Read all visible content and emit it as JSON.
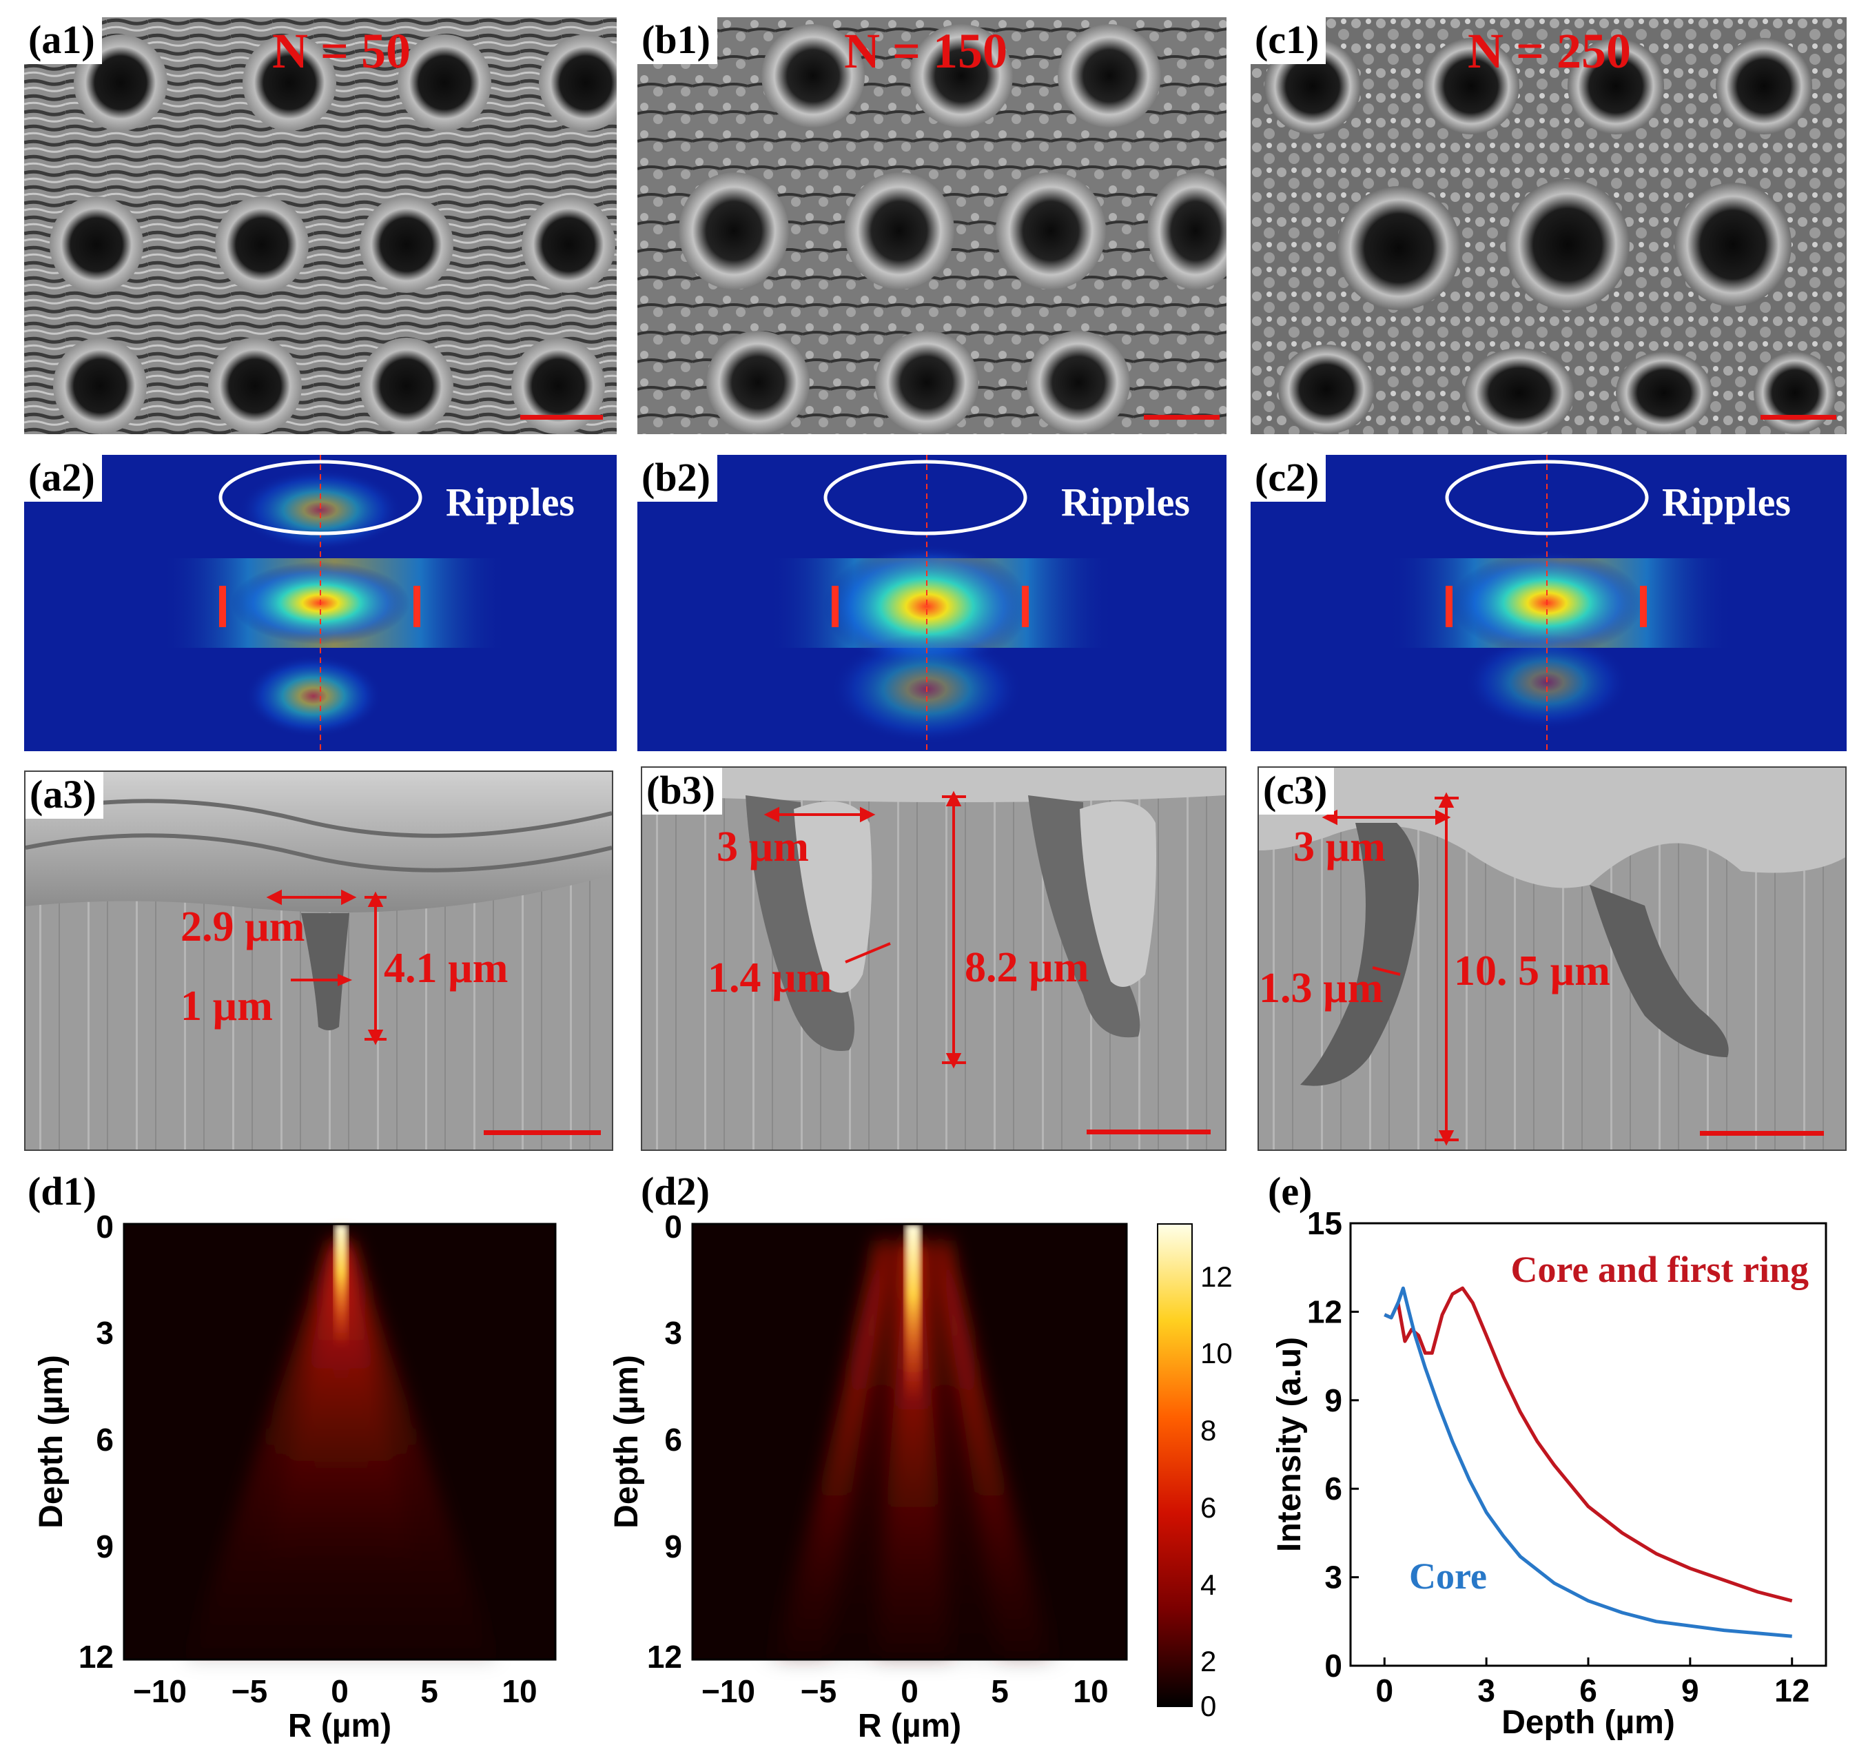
{
  "row1": {
    "a1": {
      "label": "(a1)",
      "n_label": "N = 50"
    },
    "b1": {
      "label": "(b1)",
      "n_label": "N = 150"
    },
    "c1": {
      "label": "(c1)",
      "n_label": "N = 250"
    }
  },
  "row2": {
    "a2": {
      "label": "(a2)",
      "ripples": "Ripples"
    },
    "b2": {
      "label": "(b2)",
      "ripples": "Ripples"
    },
    "c2": {
      "label": "(c2)",
      "ripples": "Ripples"
    }
  },
  "row3": {
    "a3": {
      "label": "(a3)",
      "width_top": "2.9 µm",
      "width_bottom": "1 µm",
      "depth": "4.1 µm"
    },
    "b3": {
      "label": "(b3)",
      "width_top": "3 µm",
      "width_neck": "1.4 µm",
      "depth": "8.2 µm"
    },
    "c3": {
      "label": "(c3)",
      "width_top": "3 µm",
      "width_neck": "1.3 µm",
      "depth": "10. 5 µm"
    }
  },
  "d1": {
    "label": "(d1)",
    "xlabel": "R (µm)",
    "ylabel": "Depth (µm)",
    "xticks": [
      "−10",
      "−5",
      "0",
      "5",
      "10"
    ],
    "yticks": [
      "0",
      "3",
      "6",
      "9",
      "12"
    ]
  },
  "d2": {
    "label": "(d2)",
    "xlabel": "R (µm)",
    "ylabel": "Depth (µm)",
    "xticks": [
      "−10",
      "−5",
      "0",
      "5",
      "10"
    ],
    "yticks": [
      "0",
      "3",
      "6",
      "9",
      "12"
    ],
    "colorbar_ticks": [
      "0",
      "2",
      "4",
      "6",
      "8",
      "10",
      "12"
    ]
  },
  "chart_data": {
    "type": "line",
    "panel_label": "(e)",
    "xlabel": "Depth (µm)",
    "ylabel": "Intensity (a.u)",
    "xlim": [
      -1,
      13
    ],
    "ylim": [
      0,
      15
    ],
    "xticks": [
      0,
      3,
      6,
      9,
      12
    ],
    "yticks": [
      0,
      3,
      6,
      9,
      12,
      15
    ],
    "series": [
      {
        "name": "Core and first ring",
        "color": "#c0161f",
        "x": [
          0,
          0.2,
          0.4,
          0.6,
          0.8,
          1.0,
          1.2,
          1.4,
          1.7,
          2.0,
          2.3,
          2.6,
          3.0,
          3.5,
          4.0,
          4.5,
          5,
          6,
          7,
          8,
          9,
          10,
          11,
          12
        ],
        "y": [
          11.9,
          11.8,
          12.3,
          11.0,
          11.4,
          11.2,
          10.6,
          10.6,
          11.9,
          12.6,
          12.8,
          12.3,
          11.2,
          9.8,
          8.6,
          7.6,
          6.8,
          5.4,
          4.5,
          3.8,
          3.3,
          2.9,
          2.5,
          2.2
        ]
      },
      {
        "name": "Core",
        "color": "#2878c8",
        "x": [
          0,
          0.2,
          0.4,
          0.55,
          0.7,
          0.9,
          1.2,
          1.6,
          2,
          2.5,
          3,
          3.5,
          4,
          5,
          6,
          7,
          8,
          9,
          10,
          11,
          12
        ],
        "y": [
          11.9,
          11.8,
          12.3,
          12.8,
          12.1,
          11.2,
          10.1,
          8.8,
          7.6,
          6.3,
          5.2,
          4.4,
          3.7,
          2.8,
          2.2,
          1.8,
          1.5,
          1.35,
          1.2,
          1.1,
          1.0
        ]
      }
    ]
  }
}
